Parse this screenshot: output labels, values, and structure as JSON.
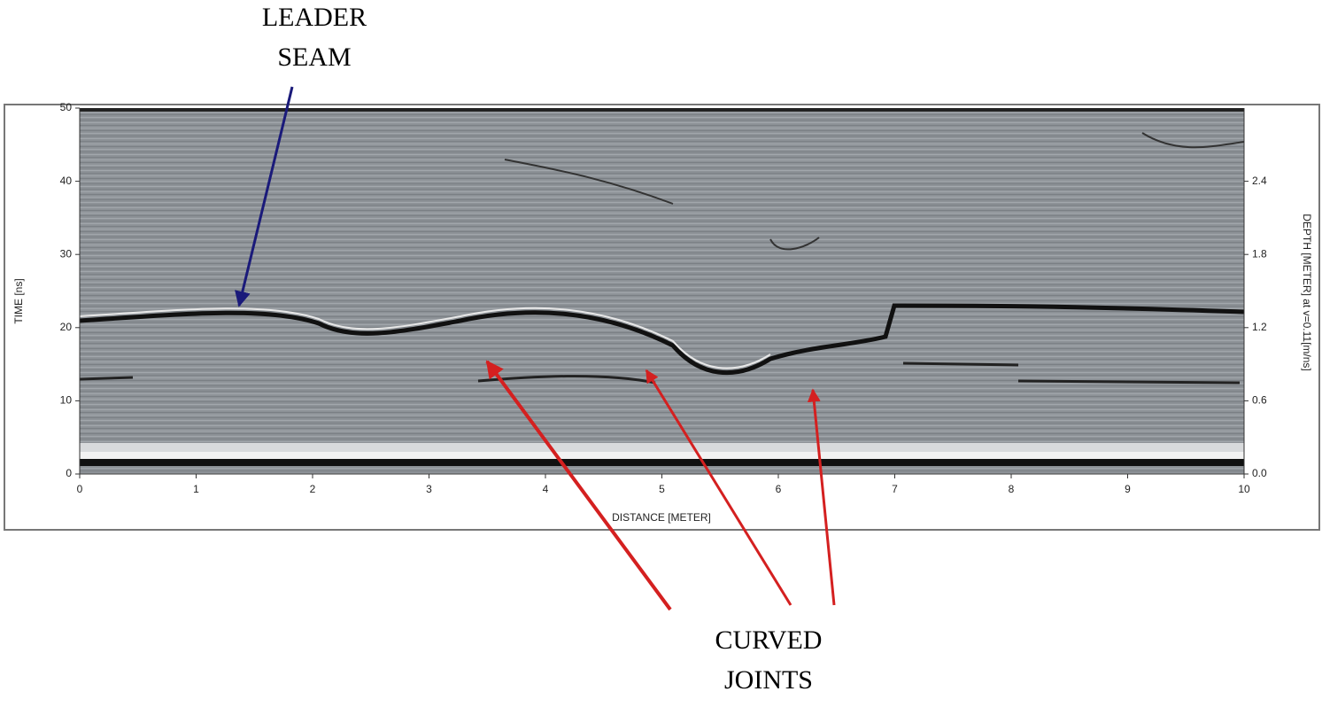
{
  "chart_data": {
    "type": "radargram",
    "xlabel": "DISTANCE [METER]",
    "ylabel": "TIME [ns]",
    "y2label": "DEPTH [METER] at v=0.11[m/ns]",
    "xlim": [
      0,
      10
    ],
    "xticks": [
      0,
      1,
      2,
      3,
      4,
      5,
      6,
      7,
      8,
      9,
      10
    ],
    "ylim": [
      0,
      50
    ],
    "yticks": [
      0,
      10,
      20,
      30,
      40,
      50
    ],
    "y2lim": [
      0,
      3.0
    ],
    "y2ticks": [
      {
        "value": 0,
        "label": "0.0"
      },
      0.6,
      1.2,
      1.8,
      2.4
    ],
    "annotations": [
      [
        "LEADER",
        "SEAM"
      ],
      [
        "CURVED",
        "JOINTS"
      ]
    ]
  }
}
